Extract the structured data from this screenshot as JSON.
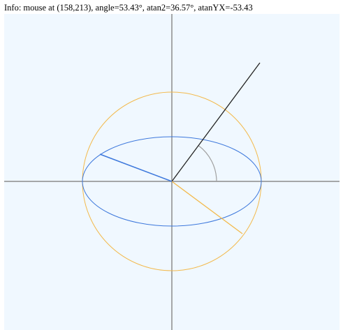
{
  "info": {
    "text": "Info: mouse at (158,213), angle=53.43°, atan2=36.57°, atanYX=-53.43"
  },
  "scene": {
    "background_color": "#f0f8ff",
    "axis_color": "#8c8c8c",
    "circle_color": "#f3b94b",
    "ellipse_color": "#3d78dc",
    "mouse_ray_color": "#222222",
    "arc_color": "#a0a0a0",
    "orange_ray_color": "#f3b94b",
    "blue_ray_color": "#3d78dc"
  }
}
